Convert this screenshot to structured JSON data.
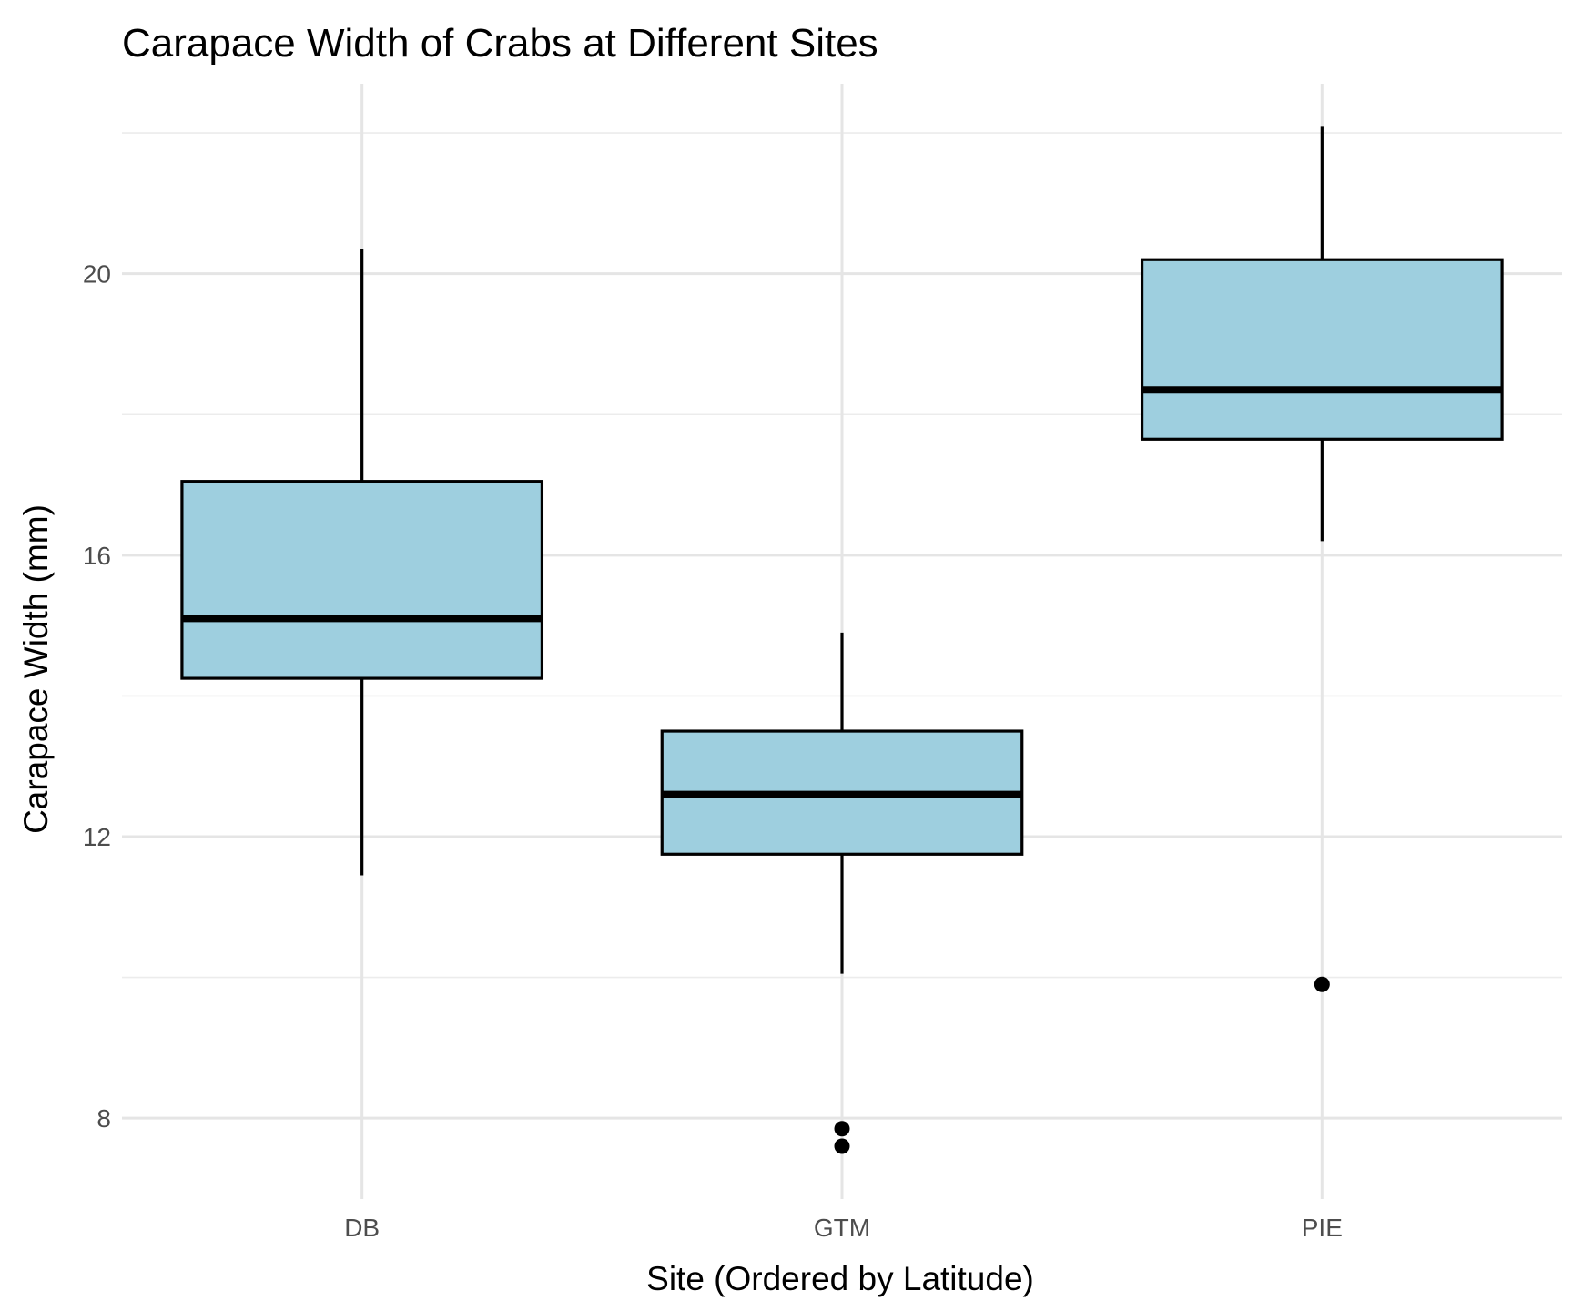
{
  "chart_data": {
    "type": "boxplot",
    "title": "Carapace Width of Crabs at Different Sites",
    "xlabel": "Site (Ordered by Latitude)",
    "ylabel": "Carapace Width (mm)",
    "ylim": [
      6.85,
      22.7
    ],
    "y_major_ticks": [
      8,
      12,
      16,
      20
    ],
    "y_minor_ticks": [
      10,
      14,
      18,
      22
    ],
    "grid": true,
    "legend": "none",
    "colors": {
      "box_fill": "#9ecfdf",
      "box_outline": "#000000",
      "grid": "#e5e5e5",
      "tick_text": "#4d4d4d"
    },
    "categories": [
      "DB",
      "GTM",
      "PIE"
    ],
    "boxes": [
      {
        "category": "DB",
        "whisker_low": 11.45,
        "q1": 14.25,
        "median": 15.1,
        "q3": 17.05,
        "whisker_high": 20.35,
        "outliers": []
      },
      {
        "category": "GTM",
        "whisker_low": 10.05,
        "q1": 11.75,
        "median": 12.6,
        "q3": 13.5,
        "whisker_high": 14.9,
        "outliers": [
          7.85,
          7.6
        ]
      },
      {
        "category": "PIE",
        "whisker_low": 16.2,
        "q1": 17.65,
        "median": 18.35,
        "q3": 20.2,
        "whisker_high": 22.1,
        "outliers": [
          9.9
        ]
      }
    ]
  }
}
